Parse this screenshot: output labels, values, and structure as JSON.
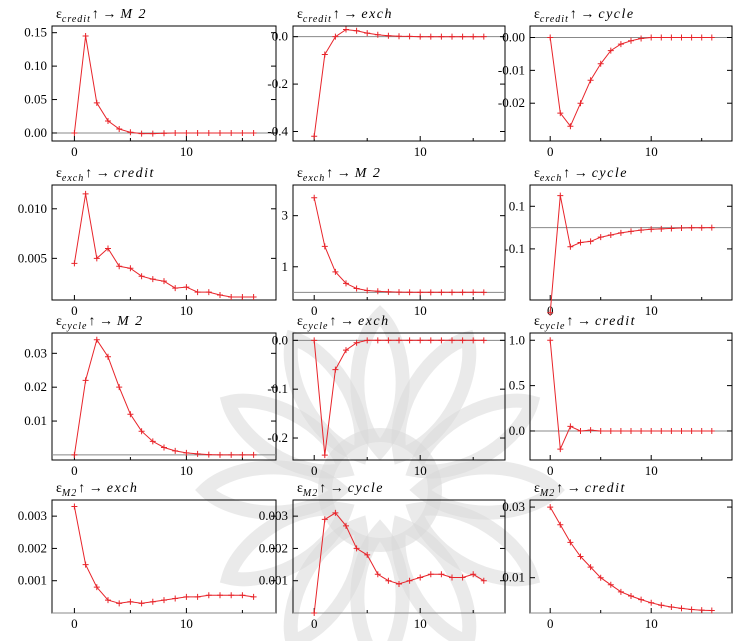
{
  "figure": {
    "watermark_color": "#d8d8d8",
    "series_color": "#e8242a",
    "zero_line_color": "#888888"
  },
  "chart_data": [
    {
      "type": "line",
      "title": {
        "symbol": "ε",
        "shock": "credit",
        "arrow": "↑ →",
        "response": "M 2"
      },
      "x": [
        0,
        1,
        2,
        3,
        4,
        5,
        6,
        7,
        8,
        9,
        10,
        11,
        12,
        13,
        14,
        15,
        16
      ],
      "values": [
        0.0,
        0.145,
        0.045,
        0.018,
        0.006,
        0.001,
        -0.001,
        -0.001,
        -0.0005,
        0,
        0,
        0,
        0,
        0,
        0,
        0,
        0
      ],
      "xlim": [
        -2,
        18
      ],
      "ylim": [
        -0.012,
        0.16
      ],
      "xticks": [
        0,
        10
      ],
      "yticks": [
        0.0,
        0.05,
        0.1,
        0.15
      ],
      "xtick_labels": [
        "0",
        "10"
      ],
      "ytick_labels": [
        "0.00",
        "0.05",
        "0.10",
        "0.15"
      ]
    },
    {
      "type": "line",
      "title": {
        "symbol": "ε",
        "shock": "credit",
        "arrow": "↑ →",
        "response": "exch"
      },
      "x": [
        0,
        1,
        2,
        3,
        4,
        5,
        6,
        7,
        8,
        9,
        10,
        11,
        12,
        13,
        14,
        15,
        16
      ],
      "values": [
        -0.42,
        -0.075,
        0.0,
        0.03,
        0.025,
        0.015,
        0.008,
        0.004,
        0.002,
        0.001,
        0,
        0,
        0,
        0,
        0,
        0,
        0
      ],
      "xlim": [
        -2,
        18
      ],
      "ylim": [
        -0.44,
        0.045
      ],
      "xticks": [
        0,
        10
      ],
      "yticks": [
        0.0,
        -0.2,
        -0.4
      ],
      "xtick_labels": [
        "",
        "10"
      ],
      "ytick_labels": [
        "0.0",
        "-0.2",
        "-0.4"
      ]
    },
    {
      "type": "line",
      "title": {
        "symbol": "ε",
        "shock": "credit",
        "arrow": "↑ →",
        "response": "cycle"
      },
      "x": [
        0,
        1,
        2,
        3,
        4,
        5,
        6,
        7,
        8,
        9,
        10,
        11,
        12,
        13,
        14,
        15,
        16
      ],
      "values": [
        0.0,
        -0.023,
        -0.027,
        -0.02,
        -0.013,
        -0.008,
        -0.004,
        -0.002,
        -0.001,
        -0.0003,
        0,
        0,
        0,
        0,
        0,
        0,
        0
      ],
      "xlim": [
        -2,
        18
      ],
      "ylim": [
        -0.0315,
        0.0035
      ],
      "xticks": [
        0,
        10
      ],
      "yticks": [
        0.0,
        -0.01,
        -0.02
      ],
      "xtick_labels": [
        "0",
        "10"
      ],
      "ytick_labels": [
        "0.00",
        "-0.01",
        "-0.02"
      ]
    },
    {
      "type": "line",
      "title": {
        "symbol": "ε",
        "shock": "exch",
        "arrow": "↑ →",
        "response": "credit"
      },
      "x": [
        0,
        1,
        2,
        3,
        4,
        5,
        6,
        7,
        8,
        9,
        10,
        11,
        12,
        13,
        14,
        15,
        16
      ],
      "values": [
        0.0045,
        0.0115,
        0.005,
        0.006,
        0.0042,
        0.004,
        0.0032,
        0.0029,
        0.0027,
        0.002,
        0.0021,
        0.0016,
        0.0016,
        0.0013,
        0.0011,
        0.0011,
        0.0011
      ],
      "xlim": [
        -2,
        18
      ],
      "ylim": [
        0.0008,
        0.0124
      ],
      "xticks": [
        0,
        10
      ],
      "yticks": [
        0.005,
        0.01
      ],
      "xtick_labels": [
        "0",
        "10"
      ],
      "ytick_labels": [
        "0.005",
        "0.010"
      ]
    },
    {
      "type": "line",
      "title": {
        "symbol": "ε",
        "shock": "exch",
        "arrow": "↑ →",
        "response": "M 2"
      },
      "x": [
        0,
        1,
        2,
        3,
        4,
        5,
        6,
        7,
        8,
        9,
        10,
        11,
        12,
        13,
        14,
        15,
        16
      ],
      "values": [
        3.7,
        1.8,
        0.8,
        0.35,
        0.15,
        0.07,
        0.04,
        0.02,
        0.01,
        0.005,
        0,
        0,
        0,
        0,
        0,
        0,
        0
      ],
      "xlim": [
        -2,
        18
      ],
      "ylim": [
        -0.3,
        4.2
      ],
      "xticks": [
        0,
        10
      ],
      "yticks": [
        1,
        3
      ],
      "xtick_labels": [
        "0",
        "10"
      ],
      "ytick_labels": [
        "1",
        "3"
      ]
    },
    {
      "type": "line",
      "title": {
        "symbol": "ε",
        "shock": "exch",
        "arrow": "↑ →",
        "response": "cycle"
      },
      "x": [
        0,
        1,
        2,
        3,
        4,
        5,
        6,
        7,
        8,
        9,
        10,
        11,
        12,
        13,
        14,
        15,
        16
      ],
      "values": [
        -0.4,
        0.15,
        -0.09,
        -0.07,
        -0.065,
        -0.045,
        -0.035,
        -0.025,
        -0.018,
        -0.012,
        -0.008,
        -0.006,
        -0.004,
        -0.002,
        -0.001,
        -0.0005,
        0
      ],
      "xlim": [
        -2,
        18
      ],
      "ylim": [
        -0.34,
        0.2
      ],
      "xticks": [
        0,
        10
      ],
      "yticks": [
        0.1,
        -0.1
      ],
      "xtick_labels": [
        "0",
        "10"
      ],
      "ytick_labels": [
        "0.1",
        "-0.1"
      ]
    },
    {
      "type": "line",
      "title": {
        "symbol": "ε",
        "shock": "cycle",
        "arrow": "↑ →",
        "response": "M 2"
      },
      "x": [
        0,
        1,
        2,
        3,
        4,
        5,
        6,
        7,
        8,
        9,
        10,
        11,
        12,
        13,
        14,
        15,
        16
      ],
      "values": [
        0.0,
        0.022,
        0.034,
        0.029,
        0.02,
        0.012,
        0.007,
        0.004,
        0.0022,
        0.0012,
        0.0006,
        0.0003,
        0.0001,
        0,
        0,
        0,
        0
      ],
      "xlim": [
        -2,
        18
      ],
      "ylim": [
        -0.0015,
        0.036
      ],
      "xticks": [
        0,
        10
      ],
      "yticks": [
        0.01,
        0.02,
        0.03
      ],
      "xtick_labels": [
        "0",
        "10"
      ],
      "ytick_labels": [
        "0.01",
        "0.02",
        "0.03"
      ]
    },
    {
      "type": "line",
      "title": {
        "symbol": "ε",
        "shock": "cycle",
        "arrow": "↑ →",
        "response": "exch"
      },
      "x": [
        0,
        1,
        2,
        3,
        4,
        5,
        6,
        7,
        8,
        9,
        10,
        11,
        12,
        13,
        14,
        15,
        16
      ],
      "values": [
        0.0,
        -0.235,
        -0.06,
        -0.02,
        -0.005,
        0,
        0,
        0,
        0,
        0,
        0,
        0,
        0,
        0,
        0,
        0,
        0
      ],
      "xlim": [
        -2,
        18
      ],
      "ylim": [
        -0.245,
        0.015
      ],
      "xticks": [
        0,
        10
      ],
      "yticks": [
        0.0,
        -0.1,
        -0.2
      ],
      "xtick_labels": [
        "0",
        "10"
      ],
      "ytick_labels": [
        "0.0",
        "-0.1",
        "-0.2"
      ]
    },
    {
      "type": "line",
      "title": {
        "symbol": "ε",
        "shock": "cycle",
        "arrow": "↑ →",
        "response": "credit"
      },
      "x": [
        0,
        1,
        2,
        3,
        4,
        5,
        6,
        7,
        8,
        9,
        10,
        11,
        12,
        13,
        14,
        15,
        16
      ],
      "values": [
        1.0,
        -0.2,
        0.05,
        0.0,
        0.01,
        0,
        0,
        0,
        0,
        0,
        0,
        0,
        0,
        0,
        0,
        0,
        0
      ],
      "xlim": [
        -2,
        18
      ],
      "ylim": [
        -0.32,
        1.08
      ],
      "xticks": [
        0,
        10
      ],
      "yticks": [
        0.0,
        0.5,
        1.0
      ],
      "xtick_labels": [
        "0",
        "10"
      ],
      "ytick_labels": [
        "0.0",
        "0.5",
        "1.0"
      ]
    },
    {
      "type": "line",
      "title": {
        "symbol": "ε",
        "shock": "M2",
        "arrow": "↑ →",
        "response": "exch"
      },
      "x": [
        0,
        1,
        2,
        3,
        4,
        5,
        6,
        7,
        8,
        9,
        10,
        11,
        12,
        13,
        14,
        15,
        16
      ],
      "values": [
        0.0033,
        0.0015,
        0.0008,
        0.0004,
        0.0003,
        0.00035,
        0.0003,
        0.00035,
        0.0004,
        0.00045,
        0.0005,
        0.0005,
        0.00055,
        0.00055,
        0.00055,
        0.00055,
        0.0005
      ],
      "xlim": [
        -2,
        18
      ],
      "ylim": [
        0.0,
        0.0035
      ],
      "xticks": [
        0,
        10
      ],
      "yticks": [
        0.001,
        0.002,
        0.003
      ],
      "xtick_labels": [
        "0",
        "10"
      ],
      "ytick_labels": [
        "0.001",
        "0.002",
        "0.003"
      ]
    },
    {
      "type": "line",
      "title": {
        "symbol": "ε",
        "shock": "M2",
        "arrow": "↑ →",
        "response": "cycle"
      },
      "x": [
        0,
        1,
        2,
        3,
        4,
        5,
        6,
        7,
        8,
        9,
        10,
        11,
        12,
        13,
        14,
        15,
        16
      ],
      "values": [
        0.0,
        0.0029,
        0.0031,
        0.0027,
        0.002,
        0.0018,
        0.0012,
        0.001,
        0.0009,
        0.001,
        0.0011,
        0.0012,
        0.0012,
        0.0011,
        0.0011,
        0.0012,
        0.001
      ],
      "xlim": [
        -2,
        18
      ],
      "ylim": [
        0.0,
        0.0035
      ],
      "xticks": [
        0,
        10
      ],
      "yticks": [
        0.001,
        0.002,
        0.003
      ],
      "xtick_labels": [
        "0",
        "10"
      ],
      "ytick_labels": [
        "0.001",
        "0.002",
        "0.003"
      ]
    },
    {
      "type": "line",
      "title": {
        "symbol": "ε",
        "shock": "M2",
        "arrow": "↑ →",
        "response": "credit"
      },
      "x": [
        0,
        1,
        2,
        3,
        4,
        5,
        6,
        7,
        8,
        9,
        10,
        11,
        12,
        13,
        14,
        15,
        16
      ],
      "values": [
        0.03,
        0.025,
        0.02,
        0.016,
        0.013,
        0.01,
        0.008,
        0.006,
        0.0048,
        0.0038,
        0.0029,
        0.0022,
        0.0017,
        0.0013,
        0.001,
        0.0008,
        0.0007
      ],
      "xlim": [
        -2,
        18
      ],
      "ylim": [
        0.0,
        0.032
      ],
      "xticks": [
        0,
        10
      ],
      "yticks": [
        0.01,
        0.03
      ],
      "xtick_labels": [
        "0",
        "10"
      ],
      "ytick_labels": [
        "0.01",
        "0.03"
      ]
    }
  ]
}
